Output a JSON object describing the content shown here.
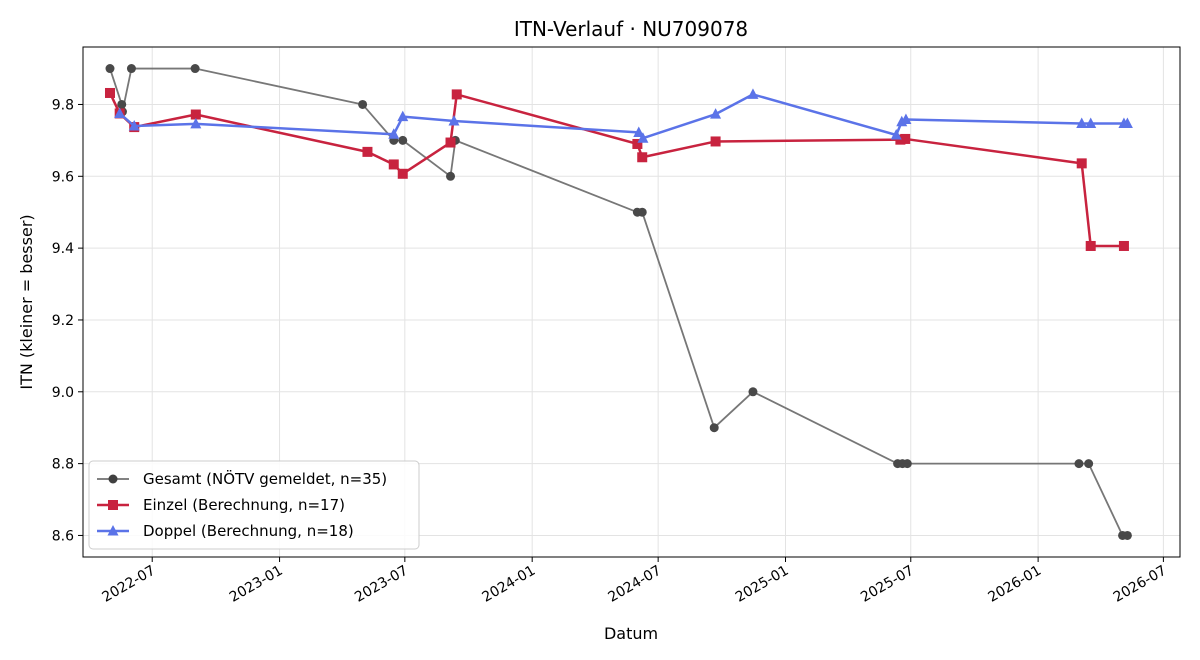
{
  "chart_data": {
    "type": "line",
    "title": "ITN-Verlauf · NU709078",
    "xlabel": "Datum",
    "ylabel": "ITN  (kleiner = besser)",
    "xlim": [
      "2022-03-23",
      "2026-07-25"
    ],
    "ylim": [
      8.54,
      9.96
    ],
    "x_ticks": [
      "2022-07",
      "2023-01",
      "2023-07",
      "2024-01",
      "2024-07",
      "2025-01",
      "2025-07",
      "2026-01",
      "2026-07"
    ],
    "y_ticks": [
      8.6,
      8.8,
      9.0,
      9.2,
      9.4,
      9.6,
      9.8
    ],
    "grid": true,
    "legend_position": "lower-left",
    "series": [
      {
        "name": "Gesamt (NÖTV gemeldet, n=35)",
        "color": "#707070",
        "marker": "circle",
        "points": [
          {
            "x": "2022-05-01",
            "y": 9.9
          },
          {
            "x": "2022-05-18",
            "y": 9.8
          },
          {
            "x": "2022-05-19",
            "y": 9.78
          },
          {
            "x": "2022-06-01",
            "y": 9.9
          },
          {
            "x": "2022-09-01",
            "y": 9.9
          },
          {
            "x": "2023-05-01",
            "y": 9.8
          },
          {
            "x": "2023-06-15",
            "y": 9.7
          },
          {
            "x": "2023-06-28",
            "y": 9.7
          },
          {
            "x": "2023-09-05",
            "y": 9.6
          },
          {
            "x": "2023-09-12",
            "y": 9.7
          },
          {
            "x": "2024-06-01",
            "y": 9.5
          },
          {
            "x": "2024-06-08",
            "y": 9.5
          },
          {
            "x": "2024-09-20",
            "y": 8.9
          },
          {
            "x": "2024-11-15",
            "y": 9.0
          },
          {
            "x": "2025-06-12",
            "y": 8.8
          },
          {
            "x": "2025-06-19",
            "y": 8.8
          },
          {
            "x": "2025-06-26",
            "y": 8.8
          },
          {
            "x": "2026-03-01",
            "y": 8.8
          },
          {
            "x": "2026-03-15",
            "y": 8.8
          },
          {
            "x": "2026-05-03",
            "y": 8.6
          },
          {
            "x": "2026-05-10",
            "y": 8.6
          }
        ]
      },
      {
        "name": "Einzel (Berechnung, n=17)",
        "color": "#c8233f",
        "marker": "square",
        "points": [
          {
            "x": "2022-05-01",
            "y": 9.832
          },
          {
            "x": "2022-05-15",
            "y": 9.775
          },
          {
            "x": "2022-06-05",
            "y": 9.737
          },
          {
            "x": "2022-09-02",
            "y": 9.772
          },
          {
            "x": "2023-05-08",
            "y": 9.668
          },
          {
            "x": "2023-06-15",
            "y": 9.633
          },
          {
            "x": "2023-06-28",
            "y": 9.607
          },
          {
            "x": "2023-09-05",
            "y": 9.694
          },
          {
            "x": "2023-09-14",
            "y": 9.828
          },
          {
            "x": "2024-06-01",
            "y": 9.69
          },
          {
            "x": "2024-06-08",
            "y": 9.653
          },
          {
            "x": "2024-09-22",
            "y": 9.697
          },
          {
            "x": "2025-06-16",
            "y": 9.702
          },
          {
            "x": "2025-06-23",
            "y": 9.704
          },
          {
            "x": "2026-03-05",
            "y": 9.636
          },
          {
            "x": "2026-03-18",
            "y": 9.406
          },
          {
            "x": "2026-05-05",
            "y": 9.406
          }
        ]
      },
      {
        "name": "Doppel (Berechnung, n=18)",
        "color": "#5b73e8",
        "marker": "triangle",
        "points": [
          {
            "x": "2022-05-15",
            "y": 9.775
          },
          {
            "x": "2022-06-05",
            "y": 9.74
          },
          {
            "x": "2022-09-02",
            "y": 9.746
          },
          {
            "x": "2023-06-15",
            "y": 9.717
          },
          {
            "x": "2023-06-28",
            "y": 9.766
          },
          {
            "x": "2023-09-10",
            "y": 9.754
          },
          {
            "x": "2024-06-03",
            "y": 9.722
          },
          {
            "x": "2024-06-09",
            "y": 9.706
          },
          {
            "x": "2024-09-22",
            "y": 9.773
          },
          {
            "x": "2024-11-15",
            "y": 9.828
          },
          {
            "x": "2025-06-10",
            "y": 9.715
          },
          {
            "x": "2025-06-18",
            "y": 9.752
          },
          {
            "x": "2025-06-24",
            "y": 9.758
          },
          {
            "x": "2026-03-05",
            "y": 9.747
          },
          {
            "x": "2026-03-18",
            "y": 9.747
          },
          {
            "x": "2026-05-05",
            "y": 9.747
          },
          {
            "x": "2026-05-10",
            "y": 9.747
          }
        ]
      }
    ]
  }
}
